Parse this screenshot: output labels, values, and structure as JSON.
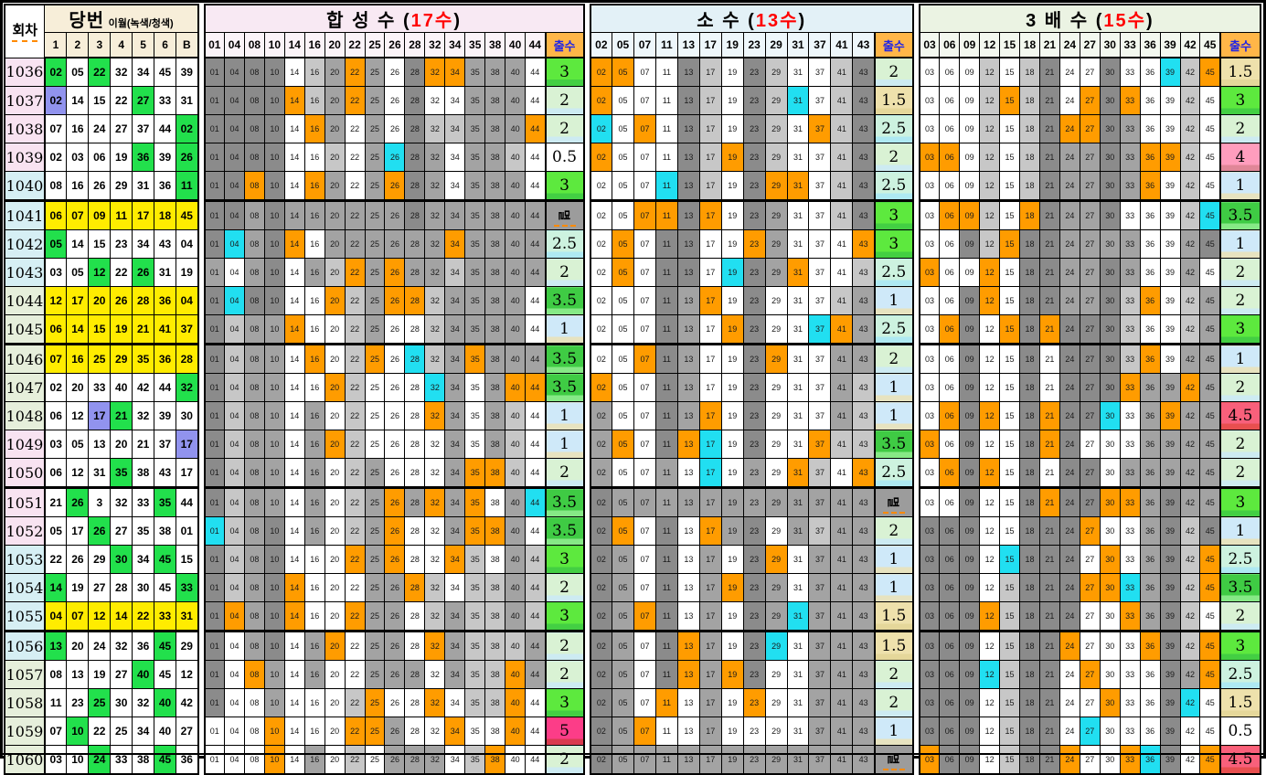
{
  "left": {
    "round_label": "회차",
    "title": "당번",
    "subtitle": "이월(녹색/청색)",
    "ball_headers": [
      "1",
      "2",
      "3",
      "4",
      "5",
      "6",
      "B"
    ],
    "title_bg": "#f7eed9",
    "head_bg": "#f7eed9"
  },
  "chul_label": "출수",
  "sections": [
    {
      "key": "comp",
      "title": "합 성 수",
      "count": "17수",
      "title_bg": "#f8e9f3",
      "head_bg": "#fbf3f8",
      "columns": [
        "01",
        "04",
        "08",
        "10",
        "14",
        "16",
        "20",
        "22",
        "25",
        "26",
        "28",
        "32",
        "34",
        "35",
        "38",
        "40",
        "44"
      ]
    },
    {
      "key": "prime",
      "title": "소  수",
      "count": "13수",
      "title_bg": "#e3f1f7",
      "head_bg": "#eef7fb",
      "columns": [
        "02",
        "05",
        "07",
        "11",
        "13",
        "17",
        "19",
        "23",
        "29",
        "31",
        "37",
        "41",
        "43"
      ]
    },
    {
      "key": "triple",
      "title": "3 배 수",
      "count": "15수",
      "title_bg": "#ebf3e3",
      "head_bg": "#f3f8ef",
      "columns": [
        "03",
        "06",
        "09",
        "12",
        "15",
        "18",
        "21",
        "24",
        "27",
        "30",
        "33",
        "36",
        "39",
        "42",
        "45"
      ]
    }
  ],
  "colors": {
    "hit_main": "#ff9c00",
    "hit_bonus": "#21dff1",
    "ball_green": "#22e04c",
    "ball_purple": "#9193ee",
    "ball_yellow": "#ffec00",
    "group_pink": "#f8e3f1",
    "group_cyan": "#d6eff4",
    "group_green": "#e6efdb",
    "chul_bg": {
      "멸": [
        "#9c9c9c",
        "#9c9c9c"
      ],
      "0.5": [
        "#ffffff",
        "#ffffff"
      ],
      "1": [
        "#cfe9f9",
        "#e7e3c0"
      ],
      "1.5": [
        "#eee1ac",
        "#e5d79a"
      ],
      "2": [
        "#d9f2d4",
        "#cdebf2"
      ],
      "2.5": [
        "#cdf2df",
        "#aee9f2"
      ],
      "3": [
        "#5de93e",
        "#43cf43"
      ],
      "3.5": [
        "#3fcb44",
        "#86e986"
      ],
      "4": [
        "#ff9dbd",
        "#e08798"
      ],
      "4.5": [
        "#f8607b",
        "#e84f4f"
      ],
      "5": [
        "#fc3d88",
        "#d93a4e"
      ]
    }
  },
  "thick_after_rounds": [
    "1040",
    "1045",
    "1050",
    "1055"
  ],
  "rows": [
    {
      "round": "1036",
      "g": "p",
      "balls": [
        [
          "02",
          "g"
        ],
        [
          "05",
          "w"
        ],
        [
          "22",
          "g"
        ],
        [
          "32",
          "w"
        ],
        [
          "34",
          "w"
        ],
        [
          "45",
          "w"
        ],
        [
          "39",
          "w"
        ]
      ],
      "comp": [
        "ddddwlgogwdoogggw",
        "3"
      ],
      "prime": [
        "oowwdlwdlwwld",
        "2"
      ],
      "triple": [
        "wwwlwldwwdwwclo",
        "1.5"
      ]
    },
    {
      "round": "1037",
      "g": "p",
      "balls": [
        [
          "02",
          "p"
        ],
        [
          "14",
          "w"
        ],
        [
          "15",
          "w"
        ],
        [
          "22",
          "w"
        ],
        [
          "27",
          "g"
        ],
        [
          "33",
          "w"
        ],
        [
          "31",
          "w"
        ]
      ],
      "comp": [
        "ddddolgogwdwwgggw",
        "2"
      ],
      "prime": [
        "owwwdlwdlcwld",
        "1.5"
      ],
      "triple": [
        "wwwloldwodowwlw",
        "3"
      ]
    },
    {
      "round": "1038",
      "g": "p",
      "balls": [
        [
          "07",
          "w"
        ],
        [
          "16",
          "w"
        ],
        [
          "24",
          "w"
        ],
        [
          "27",
          "w"
        ],
        [
          "37",
          "w"
        ],
        [
          "44",
          "w"
        ],
        [
          "02",
          "g"
        ]
      ],
      "comp": [
        "ddddwogwgwdllgggo",
        "2"
      ],
      "prime": [
        "cwowdlwdlwold",
        "2.5"
      ],
      "triple": [
        "wwwlwldoodgwwlw",
        "2"
      ]
    },
    {
      "round": "1039",
      "g": "p",
      "balls": [
        [
          "02",
          "w"
        ],
        [
          "03",
          "w"
        ],
        [
          "06",
          "w"
        ],
        [
          "19",
          "w"
        ],
        [
          "36",
          "g"
        ],
        [
          "39",
          "w"
        ],
        [
          "26",
          "g"
        ]
      ],
      "comp": [
        "ddddwwlwgcdgwgglw",
        "0.5"
      ],
      "prime": [
        "owwwdlodlwwld",
        "2"
      ],
      "triple": [
        "oowlwldggdgoolw",
        "4"
      ]
    },
    {
      "round": "1040",
      "g": "c",
      "balls": [
        [
          "08",
          "w"
        ],
        [
          "16",
          "w"
        ],
        [
          "26",
          "w"
        ],
        [
          "29",
          "w"
        ],
        [
          "31",
          "w"
        ],
        [
          "36",
          "w"
        ],
        [
          "11",
          "g"
        ]
      ],
      "comp": [
        "ddodwogwgodgwgggw",
        "3"
      ],
      "prime": [
        "wwwcdlwdoowld",
        "2.5"
      ],
      "triple": [
        "wwwlwldggdgowlw",
        "1"
      ]
    },
    {
      "round": "1041",
      "g": "c",
      "balls": [
        [
          "06",
          "y"
        ],
        [
          "07",
          "y"
        ],
        [
          "09",
          "y"
        ],
        [
          "11",
          "y"
        ],
        [
          "17",
          "y"
        ],
        [
          "18",
          "y"
        ],
        [
          "45",
          "y"
        ]
      ],
      "comp": [
        "ddgdggggggdgggggg",
        "멸"
      ],
      "prime": [
        "wwoodowdgwwld",
        "3"
      ],
      "triple": [
        "woolwodggdwwwlc",
        "3.5"
      ]
    },
    {
      "round": "1042",
      "g": "c",
      "balls": [
        [
          "05",
          "g"
        ],
        [
          "14",
          "w"
        ],
        [
          "15",
          "w"
        ],
        [
          "23",
          "w"
        ],
        [
          "34",
          "w"
        ],
        [
          "43",
          "w"
        ],
        [
          "04",
          "w"
        ]
      ],
      "comp": [
        "dcgdowggggggogggg",
        "2.5"
      ],
      "prime": [
        "wowddwwogwwwo",
        "3"
      ],
      "triple": [
        "wwdloddggggwwgd",
        "1"
      ]
    },
    {
      "round": "1043",
      "g": "c",
      "balls": [
        [
          "03",
          "w"
        ],
        [
          "05",
          "w"
        ],
        [
          "12",
          "g"
        ],
        [
          "22",
          "w"
        ],
        [
          "26",
          "g"
        ],
        [
          "31",
          "w"
        ],
        [
          "19",
          "w"
        ]
      ],
      "comp": [
        "gwgdwglogogglgggg",
        "2"
      ],
      "prime": [
        "wowddwcdgowwl",
        "2.5"
      ],
      "triple": [
        "owwowddggdgwwgw",
        "2"
      ]
    },
    {
      "round": "1044",
      "g": "g",
      "balls": [
        [
          "12",
          "y"
        ],
        [
          "17",
          "y"
        ],
        [
          "20",
          "y"
        ],
        [
          "26",
          "y"
        ],
        [
          "28",
          "y"
        ],
        [
          "36",
          "y"
        ],
        [
          "04",
          "y"
        ]
      ],
      "comp": [
        "dcddwwolgoolggggw",
        "3.5"
      ],
      "prime": [
        "wwwdgowdwwwlg",
        "1"
      ],
      "triple": [
        "wwdowddggdlowlg",
        "2"
      ]
    },
    {
      "round": "1045",
      "g": "g",
      "balls": [
        [
          "06",
          "y"
        ],
        [
          "14",
          "y"
        ],
        [
          "15",
          "y"
        ],
        [
          "19",
          "y"
        ],
        [
          "21",
          "y"
        ],
        [
          "41",
          "y"
        ],
        [
          "37",
          "y"
        ]
      ],
      "comp": [
        "dlggowwlgwwlggggw",
        "1"
      ],
      "prime": [
        "wwwdgwodwwcog",
        "2.5"
      ],
      "triple": [
        "wodwododddlwwlg",
        "3"
      ]
    },
    {
      "round": "1046",
      "g": "g",
      "balls": [
        [
          "07",
          "y"
        ],
        [
          "16",
          "y"
        ],
        [
          "25",
          "y"
        ],
        [
          "29",
          "y"
        ],
        [
          "35",
          "y"
        ],
        [
          "36",
          "y"
        ],
        [
          "28",
          "y"
        ]
      ],
      "comp": [
        "dlggwowlowclgoggg",
        "3.5"
      ],
      "prime": [
        "wwodgwwdowwgg",
        "2"
      ],
      "triple": [
        "wwdwwdwdddlowgg",
        "1"
      ]
    },
    {
      "round": "1047",
      "g": "g",
      "balls": [
        [
          "02",
          "w"
        ],
        [
          "20",
          "w"
        ],
        [
          "33",
          "w"
        ],
        [
          "40",
          "w"
        ],
        [
          "42",
          "w"
        ],
        [
          "44",
          "w"
        ],
        [
          "32",
          "g"
        ]
      ],
      "comp": [
        "dlggwwolwwwcgwgoo",
        "3.5"
      ],
      "prime": [
        "owwdgwwdwwwgl",
        "1"
      ],
      "triple": [
        "wwdwwdwdddoggog",
        "2"
      ]
    },
    {
      "round": "1048",
      "g": "g",
      "balls": [
        [
          "06",
          "w"
        ],
        [
          "12",
          "w"
        ],
        [
          "17",
          "p"
        ],
        [
          "21",
          "g"
        ],
        [
          "32",
          "w"
        ],
        [
          "39",
          "w"
        ],
        [
          "30",
          "w"
        ]
      ],
      "comp": [
        "dlggwgwlwwwogwglw",
        "1"
      ],
      "prime": [
        "gwwdgowdwwwgl",
        "1"
      ],
      "triple": [
        "wodowdoddcwgogg",
        "4.5"
      ]
    },
    {
      "round": "1049",
      "g": "p",
      "balls": [
        [
          "03",
          "w"
        ],
        [
          "05",
          "w"
        ],
        [
          "13",
          "w"
        ],
        [
          "20",
          "w"
        ],
        [
          "21",
          "w"
        ],
        [
          "37",
          "w"
        ],
        [
          "17",
          "p"
        ]
      ],
      "comp": [
        "dlggwgolwwwwgwglw",
        "1"
      ],
      "prime": [
        "gowdocwdwwoll",
        "3.5"
      ],
      "triple": [
        "owdwwdodwwwgggg",
        "2"
      ]
    },
    {
      "round": "1050",
      "g": "p",
      "balls": [
        [
          "06",
          "w"
        ],
        [
          "12",
          "w"
        ],
        [
          "31",
          "w"
        ],
        [
          "35",
          "g"
        ],
        [
          "38",
          "w"
        ],
        [
          "43",
          "w"
        ],
        [
          "17",
          "w"
        ]
      ],
      "comp": [
        "dlggwgwlgwwwgoolw",
        "2"
      ],
      "prime": [
        "gwwgwcwgwolwo",
        "2.5"
      ],
      "triple": [
        "wodowdwddwggggg",
        "2"
      ]
    },
    {
      "round": "1051",
      "g": "p",
      "balls": [
        [
          "21",
          "w"
        ],
        [
          "26",
          "g"
        ],
        [
          "3",
          "w"
        ],
        [
          "32",
          "w"
        ],
        [
          "33",
          "w"
        ],
        [
          "35",
          "g"
        ],
        [
          "44",
          "w"
        ]
      ],
      "comp": [
        "dlggwgwlgogogowgc",
        "3.5"
      ],
      "prime": [
        "dgggggggggggg",
        "멸"
      ],
      "triple": [
        "wwdwwdoddoogdgg",
        "3"
      ]
    },
    {
      "round": "1052",
      "g": "p",
      "balls": [
        [
          "05",
          "w"
        ],
        [
          "17",
          "w"
        ],
        [
          "26",
          "g"
        ],
        [
          "27",
          "w"
        ],
        [
          "35",
          "w"
        ],
        [
          "38",
          "w"
        ],
        [
          "01",
          "w"
        ]
      ],
      "comp": [
        "clgdwgwlgowwgoogw",
        "3.5"
      ],
      "prime": [
        "dowdwogdwglgg",
        "2"
      ],
      "triple": [
        "dddwwdddowwgdld",
        "1"
      ]
    },
    {
      "round": "1053",
      "g": "c",
      "balls": [
        [
          "22",
          "w"
        ],
        [
          "26",
          "w"
        ],
        [
          "29",
          "w"
        ],
        [
          "30",
          "g"
        ],
        [
          "34",
          "w"
        ],
        [
          "45",
          "g"
        ],
        [
          "15",
          "w"
        ]
      ],
      "comp": [
        "dlgdwwwogowwolwgl",
        "3"
      ],
      "prime": [
        "dgwdwgwdowggg",
        "1"
      ],
      "triple": [
        "dddwcdddwowgdlo",
        "2.5"
      ]
    },
    {
      "round": "1054",
      "g": "c",
      "balls": [
        [
          "14",
          "g"
        ],
        [
          "19",
          "w"
        ],
        [
          "27",
          "w"
        ],
        [
          "28",
          "w"
        ],
        [
          "30",
          "w"
        ],
        [
          "45",
          "w"
        ],
        [
          "33",
          "g"
        ]
      ],
      "comp": [
        "dlgdowwwggolwllgl",
        "2"
      ],
      "prime": [
        "dgwdwgodgwggg",
        "1"
      ],
      "triple": [
        "dddwldddoocgdlo",
        "3.5"
      ]
    },
    {
      "round": "1055",
      "g": "c",
      "balls": [
        [
          "04",
          "y"
        ],
        [
          "07",
          "y"
        ],
        [
          "12",
          "y"
        ],
        [
          "14",
          "y"
        ],
        [
          "22",
          "y"
        ],
        [
          "33",
          "y"
        ],
        [
          "31",
          "y"
        ]
      ],
      "comp": [
        "dogdowwoggwlgllgl",
        "3"
      ],
      "prime": [
        "dgodwgwdgcggg",
        "1.5"
      ],
      "triple": [
        "dddoldddwwogdlw",
        "2"
      ]
    },
    {
      "round": "1056",
      "g": "c",
      "balls": [
        [
          "13",
          "g"
        ],
        [
          "20",
          "w"
        ],
        [
          "24",
          "w"
        ],
        [
          "32",
          "w"
        ],
        [
          "36",
          "w"
        ],
        [
          "45",
          "g"
        ],
        [
          "29",
          "w"
        ]
      ],
      "comp": [
        "dwgdwgowggwoglllg",
        "2"
      ],
      "prime": [
        "dgwdogwdcwggg",
        "1.5"
      ],
      "triple": [
        "dddwlddowwwodlo",
        "3"
      ]
    },
    {
      "round": "1057",
      "g": "g",
      "balls": [
        [
          "08",
          "w"
        ],
        [
          "13",
          "w"
        ],
        [
          "19",
          "w"
        ],
        [
          "27",
          "w"
        ],
        [
          "40",
          "g"
        ],
        [
          "45",
          "w"
        ],
        [
          "12",
          "w"
        ]
      ],
      "comp": [
        "dwogwgwwgggwgllog",
        "2"
      ],
      "prime": [
        "dgwdogodwwggg",
        "2"
      ],
      "triple": [
        "dddclddwowwwdgo",
        "2.5"
      ]
    },
    {
      "round": "1058",
      "g": "g",
      "balls": [
        [
          "11",
          "w"
        ],
        [
          "23",
          "w"
        ],
        [
          "25",
          "g"
        ],
        [
          "30",
          "w"
        ],
        [
          "32",
          "w"
        ],
        [
          "40",
          "g"
        ],
        [
          "42",
          "w"
        ]
      ],
      "comp": [
        "dwwgwwwlowwowllow",
        "3"
      ],
      "prime": [
        "dgwowgwowwggg",
        "2"
      ],
      "triple": [
        "dddwlddwwowwdcw",
        "1.5"
      ]
    },
    {
      "round": "1059",
      "g": "g",
      "balls": [
        [
          "07",
          "w"
        ],
        [
          "10",
          "g"
        ],
        [
          "22",
          "w"
        ],
        [
          "25",
          "w"
        ],
        [
          "34",
          "w"
        ],
        [
          "40",
          "w"
        ],
        [
          "27",
          "w"
        ]
      ],
      "comp": [
        "wwwowwwoogwwowwow",
        "5"
      ],
      "prime": [
        "dgowwgwwwwggg",
        "1"
      ],
      "triple": [
        "dddwlddwcwwwdww",
        "0.5"
      ]
    },
    {
      "round": "1060",
      "g": "g",
      "balls": [
        [
          "03",
          "w"
        ],
        [
          "10",
          "w"
        ],
        [
          "24",
          "g"
        ],
        [
          "33",
          "w"
        ],
        [
          "38",
          "w"
        ],
        [
          "45",
          "g"
        ],
        [
          "36",
          "w"
        ]
      ],
      "comp": [
        "wwwowgwlwgggwloww",
        "2"
      ],
      "prime": [
        "dgggggggggggg",
        "멸"
      ],
      "triple": [
        "oddwlddowwocdwo",
        "4.5"
      ]
    }
  ]
}
